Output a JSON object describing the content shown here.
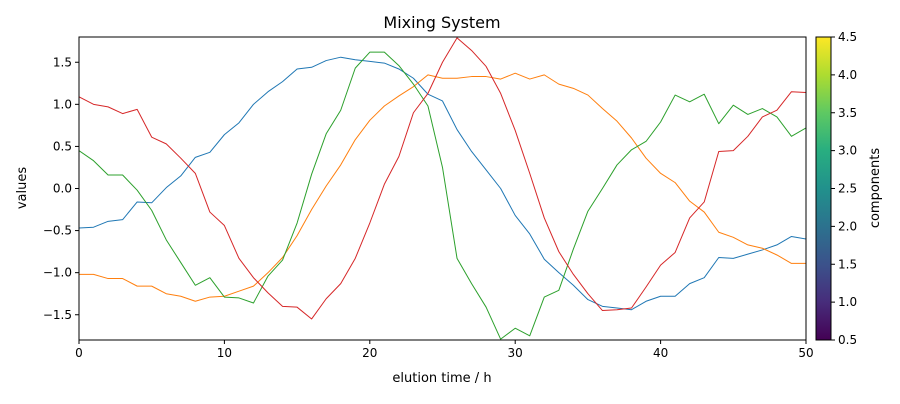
{
  "chart_data": {
    "type": "line",
    "title": "Mixing System",
    "xlabel": "elution time / h",
    "ylabel": "values",
    "xlim": [
      0,
      50
    ],
    "ylim": [
      -1.8,
      1.8
    ],
    "xticks": [
      0,
      10,
      20,
      30,
      40,
      50
    ],
    "yticks": [
      -1.5,
      -1.0,
      -0.5,
      0.0,
      0.5,
      1.0,
      1.5
    ],
    "xtick_labels": [
      "0",
      "10",
      "20",
      "30",
      "40",
      "50"
    ],
    "ytick_labels": [
      "−1.5",
      "−1.0",
      "−0.5",
      "0.0",
      "0.5",
      "1.0",
      "1.5"
    ],
    "grid": false,
    "x": [
      0,
      1,
      2,
      3,
      4,
      5,
      6,
      7,
      8,
      9,
      10,
      11,
      12,
      13,
      14,
      15,
      16,
      17,
      18,
      19,
      20,
      21,
      22,
      23,
      24,
      25,
      26,
      27,
      28,
      29,
      30,
      31,
      32,
      33,
      34,
      35,
      36,
      37,
      38,
      39,
      40,
      41,
      42,
      43,
      44,
      45,
      46,
      47,
      48,
      49,
      50
    ],
    "series": [
      {
        "color": "#1f77b4",
        "values": [
          -0.47,
          -0.46,
          -0.39,
          -0.37,
          -0.16,
          -0.17,
          0.01,
          0.15,
          0.37,
          0.43,
          0.64,
          0.78,
          1.0,
          1.15,
          1.27,
          1.42,
          1.44,
          1.52,
          1.56,
          1.53,
          1.51,
          1.49,
          1.42,
          1.31,
          1.12,
          1.04,
          0.7,
          0.44,
          0.22,
          0.0,
          -0.32,
          -0.54,
          -0.84,
          -1.0,
          -1.15,
          -1.32,
          -1.4,
          -1.42,
          -1.44,
          -1.34,
          -1.28,
          -1.28,
          -1.13,
          -1.06,
          -0.82,
          -0.83,
          -0.78,
          -0.73,
          -0.67,
          -0.57,
          -0.6
        ]
      },
      {
        "color": "#ff7f0e",
        "values": [
          -1.02,
          -1.02,
          -1.07,
          -1.07,
          -1.16,
          -1.16,
          -1.25,
          -1.28,
          -1.34,
          -1.29,
          -1.28,
          -1.22,
          -1.16,
          -1.0,
          -0.82,
          -0.56,
          -0.25,
          0.03,
          0.28,
          0.58,
          0.81,
          0.98,
          1.1,
          1.21,
          1.35,
          1.31,
          1.31,
          1.33,
          1.33,
          1.3,
          1.37,
          1.3,
          1.35,
          1.24,
          1.19,
          1.11,
          0.95,
          0.8,
          0.6,
          0.36,
          0.18,
          0.07,
          -0.15,
          -0.28,
          -0.52,
          -0.58,
          -0.67,
          -0.71,
          -0.79,
          -0.89,
          -0.89
        ]
      },
      {
        "color": "#2ca02c",
        "values": [
          0.45,
          0.33,
          0.16,
          0.16,
          -0.02,
          -0.26,
          -0.61,
          -0.88,
          -1.15,
          -1.06,
          -1.29,
          -1.3,
          -1.36,
          -1.04,
          -0.85,
          -0.41,
          0.17,
          0.65,
          0.93,
          1.43,
          1.62,
          1.62,
          1.46,
          1.24,
          0.98,
          0.25,
          -0.83,
          -1.13,
          -1.41,
          -1.79,
          -1.66,
          -1.75,
          -1.29,
          -1.21,
          -0.72,
          -0.27,
          0.0,
          0.28,
          0.46,
          0.56,
          0.79,
          1.11,
          1.03,
          1.12,
          0.77,
          0.99,
          0.88,
          0.95,
          0.85,
          0.62,
          0.72
        ]
      },
      {
        "color": "#d62728",
        "values": [
          1.09,
          1.0,
          0.97,
          0.89,
          0.94,
          0.61,
          0.53,
          0.36,
          0.18,
          -0.28,
          -0.44,
          -0.83,
          -1.06,
          -1.24,
          -1.4,
          -1.41,
          -1.55,
          -1.31,
          -1.13,
          -0.83,
          -0.41,
          0.05,
          0.38,
          0.9,
          1.13,
          1.5,
          1.79,
          1.64,
          1.45,
          1.13,
          0.69,
          0.18,
          -0.35,
          -0.75,
          -1.02,
          -1.25,
          -1.45,
          -1.44,
          -1.42,
          -1.17,
          -0.91,
          -0.76,
          -0.35,
          -0.16,
          0.44,
          0.45,
          0.62,
          0.85,
          0.93,
          1.15,
          1.14
        ]
      }
    ],
    "colorbar": {
      "label": "components",
      "colormap": "viridis",
      "range": [
        0.5,
        4.5
      ],
      "ticks": [
        0.5,
        1.0,
        1.5,
        2.0,
        2.5,
        3.0,
        3.5,
        4.0,
        4.5
      ],
      "tick_labels": [
        "0.5",
        "1.0",
        "1.5",
        "2.0",
        "2.5",
        "3.0",
        "3.5",
        "4.0",
        "4.5"
      ]
    }
  }
}
